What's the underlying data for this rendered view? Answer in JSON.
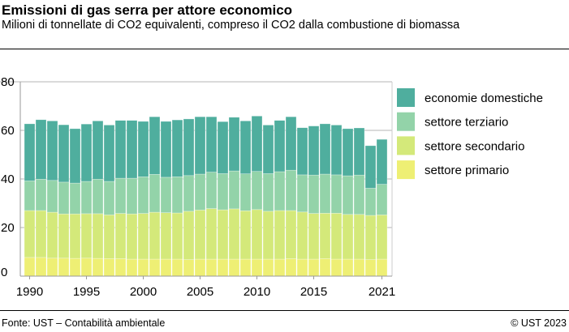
{
  "header": {
    "title": "Emissioni di gas serra per attore economico",
    "subtitle": "Milioni di tonnellate di CO2 equivalenti, compreso il CO2 dalla combustione di biomassa"
  },
  "footer": {
    "source": "Fonte: UST – Contabilità ambientale",
    "copyright": "© UST 2023"
  },
  "chart_data": {
    "type": "bar",
    "stacked": true,
    "title": "",
    "xlabel": "",
    "ylabel": "",
    "ylim": [
      0,
      80
    ],
    "yticks": [
      "0",
      "20",
      "40",
      "60",
      "80"
    ],
    "xtick_labels": [
      "1990",
      "1995",
      "2000",
      "2005",
      "2010",
      "2015",
      "2021"
    ],
    "grid": true,
    "legend_position": "right",
    "categories": [
      1990,
      1991,
      1992,
      1993,
      1994,
      1995,
      1996,
      1997,
      1998,
      1999,
      2000,
      2001,
      2002,
      2003,
      2004,
      2005,
      2006,
      2007,
      2008,
      2009,
      2010,
      2011,
      2012,
      2013,
      2014,
      2015,
      2016,
      2017,
      2018,
      2019,
      2020,
      2021
    ],
    "series": [
      {
        "name": "settore primario",
        "color": "#eeef74",
        "values": [
          7.7,
          7.7,
          7.4,
          7.4,
          7.3,
          7.4,
          7.3,
          7.2,
          7.2,
          7.0,
          7.0,
          7.0,
          7.0,
          7.0,
          6.8,
          7.0,
          7.0,
          7.0,
          7.0,
          7.0,
          7.0,
          7.0,
          7.0,
          7.2,
          7.0,
          7.0,
          7.2,
          7.0,
          7.0,
          7.0,
          6.8,
          7.0
        ]
      },
      {
        "name": "settore secondario",
        "color": "#d4e97a",
        "values": [
          19.3,
          19.3,
          18.9,
          18.2,
          18.3,
          18.3,
          18.4,
          18.0,
          18.6,
          18.6,
          18.8,
          19.3,
          19.1,
          19.0,
          19.9,
          20.2,
          20.8,
          20.3,
          20.7,
          19.9,
          20.4,
          19.7,
          20.0,
          19.8,
          19.4,
          18.8,
          18.7,
          18.9,
          18.4,
          18.4,
          18.2,
          18.2
        ]
      },
      {
        "name": "settore terziario",
        "color": "#93d3a9",
        "values": [
          12.2,
          12.9,
          13.1,
          13.1,
          12.7,
          13.3,
          14.2,
          13.8,
          14.5,
          14.7,
          15.1,
          15.6,
          14.6,
          14.9,
          14.7,
          14.8,
          15.0,
          14.9,
          15.6,
          15.2,
          15.7,
          15.5,
          16.0,
          16.6,
          15.3,
          15.8,
          16.1,
          15.8,
          15.9,
          16.2,
          11.2,
          12.6
        ]
      },
      {
        "name": "economie domestiche",
        "color": "#4fae9e",
        "values": [
          23.5,
          24.5,
          24.5,
          23.6,
          22.4,
          23.6,
          24.0,
          23.2,
          23.8,
          23.8,
          22.8,
          23.7,
          23.0,
          23.4,
          23.3,
          23.6,
          22.8,
          21.4,
          22.1,
          21.8,
          22.8,
          20.0,
          21.1,
          22.0,
          19.4,
          20.2,
          20.7,
          20.5,
          19.4,
          19.4,
          17.5,
          18.5
        ]
      }
    ],
    "legend_order": [
      "economie domestiche",
      "settore terziario",
      "settore secondario",
      "settore primario"
    ]
  }
}
